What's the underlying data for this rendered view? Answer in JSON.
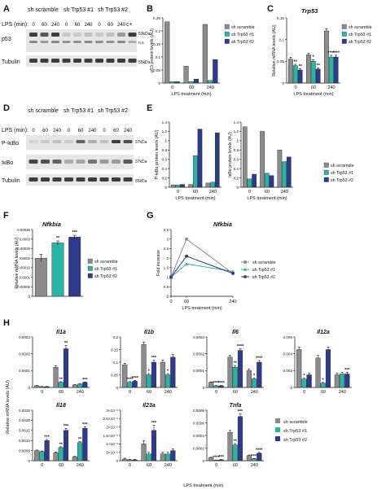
{
  "colors": {
    "scramble": "#8c8c8c",
    "trp1": "#2bb3a3",
    "trp2": "#2e3a8c",
    "blot_bg": "#e8e8e8",
    "band": "#2a2a2a"
  },
  "panels": {
    "A": {
      "letter": "A",
      "lps_label": "LPS (min):",
      "groups": [
        "sh scramble",
        "sh Trp53 #1",
        "sh Trp53 #2"
      ],
      "times": [
        "0",
        "60",
        "240",
        "0",
        "60",
        "240",
        "0",
        "60",
        "240"
      ],
      "extra_lane": "c+",
      "rows": [
        "p53",
        "Tubulin"
      ],
      "markers": [
        "53kDa",
        "n.s",
        "55kDa"
      ]
    },
    "B": {
      "letter": "B"
    },
    "C": {
      "letter": "C",
      "title": "Trp53"
    },
    "D": {
      "letter": "D",
      "lps_label": "LPS (min):",
      "groups": [
        "sh scramble",
        "sh Trp53 #1",
        "sh Trp53 #2"
      ],
      "times": [
        "0",
        "60",
        "240",
        "0",
        "60",
        "240",
        "0",
        "60",
        "240"
      ],
      "rows": [
        "P-IκBα",
        "IκBα",
        "Tubulin"
      ],
      "markers": [
        "37kDa",
        "37kDa",
        "55kDa"
      ]
    },
    "E": {
      "letter": "E"
    },
    "F": {
      "letter": "F",
      "title": "Nfkbia"
    },
    "G": {
      "letter": "G",
      "title": "Nfkbia"
    },
    "H": {
      "letter": "H",
      "ylabel": "Relative mRNA levels (AU)",
      "xlabel": "LPS treatment (min)"
    }
  },
  "legend": {
    "items": [
      "sh scramble",
      "sh Trp53 #1",
      "sh Trp53 #2"
    ]
  },
  "chart_data": [
    {
      "id": "B",
      "type": "bar",
      "categories": [
        "0",
        "60",
        "240"
      ],
      "series": [
        {
          "name": "sh scramble",
          "values": [
            0.235,
            0.065,
            0.225
          ]
        },
        {
          "name": "sh Trp53 #1",
          "values": [
            0.005,
            0.005,
            0.01
          ]
        },
        {
          "name": "sh Trp53 #2",
          "values": [
            0.005,
            0.015,
            0.09
          ]
        }
      ],
      "ylabel": "p53 protein levels (AU)",
      "xlabel": "LPS treatment (min)",
      "ylim": [
        0,
        0.25
      ],
      "yticks": [
        "0",
        "0.05",
        "0.1",
        "0.15",
        "0.2",
        "0.25"
      ],
      "legend": "top-right"
    },
    {
      "id": "C",
      "type": "bar",
      "categories": [
        "0",
        "60",
        "240"
      ],
      "series": [
        {
          "name": "sh scramble",
          "values": [
            0.055,
            0.065,
            0.12
          ]
        },
        {
          "name": "sh Trp53 #1",
          "values": [
            0.04,
            0.05,
            0.06
          ]
        },
        {
          "name": "sh Trp53 #2",
          "values": [
            0.03,
            0.032,
            0.06
          ]
        }
      ],
      "errors": [
        [
          0.004,
          0.004,
          0.005
        ],
        [
          0.003,
          0.004,
          0.004
        ],
        [
          0.003,
          0.003,
          0.004
        ]
      ],
      "signif": [
        [
          "",
          "",
          ""
        ],
        [
          "**",
          "*",
          "****"
        ],
        [
          "**",
          "**",
          "****"
        ]
      ],
      "title": "Trp53",
      "ylabel": "Relative mRNA levels (AU)",
      "xlabel": "LPS treatment (min)",
      "ylim": [
        0,
        0.15
      ],
      "yticks": [
        "0",
        "0.05",
        "0.1",
        "0.15"
      ],
      "legend": "top-right"
    },
    {
      "id": "E1",
      "type": "bar",
      "categories": [
        "0",
        "60",
        "240"
      ],
      "series": [
        {
          "name": "sh scramble",
          "values": [
            0.05,
            0.06,
            0.09
          ]
        },
        {
          "name": "sh Trp53 #1",
          "values": [
            0.05,
            0.68,
            0.11
          ]
        },
        {
          "name": "sh Trp53 #2",
          "values": [
            0.06,
            1.25,
            1.17
          ]
        }
      ],
      "ylabel": "P-IκBα protein levels (AU)",
      "xlabel": "LPS treatment (min)",
      "ylim": [
        0,
        1.4
      ],
      "yticks": [
        "0",
        "0.2",
        "0.4",
        "0.6",
        "0.8",
        "1",
        "1.2",
        "1.4"
      ]
    },
    {
      "id": "E2",
      "type": "bar",
      "categories": [
        "0",
        "60",
        "240"
      ],
      "series": [
        {
          "name": "sh scramble",
          "values": [
            1.3,
            1.2,
            0.8
          ]
        },
        {
          "name": "sh Trp53 #1",
          "values": [
            0.18,
            0.3,
            0.55
          ]
        },
        {
          "name": "sh Trp53 #2",
          "values": [
            0.28,
            0.25,
            0.65
          ]
        }
      ],
      "ylabel": "IκBα protein levels (AU)",
      "xlabel": "LPS treatment (min)",
      "ylim": [
        0,
        1.4
      ],
      "yticks": [
        "0",
        "0.2",
        "0.4",
        "0.6",
        "0.8",
        "1",
        "1.2",
        "1.4"
      ],
      "legend": "right"
    },
    {
      "id": "F",
      "type": "bar",
      "categories": [
        "sh scramble",
        "sh Trp53 #1",
        "sh Trp53 #2"
      ],
      "values": [
        0.0002,
        0.00028,
        0.00031
      ],
      "errors": [
        2e-05,
        1e-05,
        1e-05
      ],
      "signif": [
        "",
        "**",
        "***"
      ],
      "title": "Nfkbia",
      "ylabel": "Relative mRNA levels (AU)",
      "ylim": [
        0,
        0.00035
      ],
      "yticks": [
        "0",
        "0.00005",
        "0.0001",
        "0.00015",
        "0.0002",
        "0.00025",
        "0.0003",
        "0.00035"
      ],
      "legend": "right"
    },
    {
      "id": "G",
      "type": "line",
      "x": [
        0,
        60,
        240
      ],
      "series": [
        {
          "name": "sh scramble",
          "values": [
            1,
            3,
            1.2
          ]
        },
        {
          "name": "sh Trp53 #1",
          "values": [
            1,
            1.7,
            1.3
          ]
        },
        {
          "name": "sh Trp53 #2",
          "values": [
            1,
            2.1,
            1.2
          ]
        }
      ],
      "title": "Nfkbia",
      "ylabel": "Fold increase",
      "xlabel": "LPS treatment (min)",
      "ylim": [
        0,
        3.5
      ],
      "yticks": [
        "0",
        "0.5",
        "1",
        "1.5",
        "2",
        "2.5",
        "3",
        "3.5"
      ],
      "xticks": [
        "0",
        "60",
        "240"
      ],
      "legend": "right"
    },
    {
      "id": "H1",
      "type": "bar",
      "title": "Il1a",
      "categories": [
        "0",
        "60",
        "240"
      ],
      "series": [
        {
          "name": "sh scramble",
          "values": [
            1e-05,
            0.00012,
            1.5e-05
          ]
        },
        {
          "name": "sh Trp53 #1",
          "values": [
            5e-06,
            3e-05,
            2e-05
          ]
        },
        {
          "name": "sh Trp53 #2",
          "values": [
            5e-06,
            0.00023,
            3e-05
          ]
        }
      ],
      "errors": [
        [
          2e-06,
          1e-05,
          2e-06
        ],
        [
          1e-06,
          4e-06,
          2e-06
        ],
        [
          1e-06,
          2e-05,
          2e-06
        ]
      ],
      "signif": [
        [
          "",
          "",
          ""
        ],
        [
          "",
          "**",
          ""
        ],
        [
          "",
          "**",
          "***"
        ]
      ],
      "ylim": [
        0,
        0.0003
      ],
      "yticks": [
        "0",
        "0.0001",
        "0.0002",
        "0.0003"
      ]
    },
    {
      "id": "H2",
      "type": "bar",
      "title": "Il1b",
      "categories": [
        "0",
        "60",
        "240"
      ],
      "series": [
        {
          "name": "sh scramble",
          "values": [
            0.09,
            0.17,
            0.1
          ]
        },
        {
          "name": "sh Trp53 #1",
          "values": [
            0.02,
            0.05,
            0.05
          ]
        },
        {
          "name": "sh Trp53 #2",
          "values": [
            0.025,
            0.1,
            0.12
          ]
        }
      ],
      "errors": [
        [
          0.005,
          0.01,
          0.008
        ],
        [
          0.003,
          0.005,
          0.005
        ],
        [
          0.003,
          0.008,
          0.01
        ]
      ],
      "signif": [
        [
          "",
          "",
          ""
        ],
        [
          "****",
          "*",
          "*"
        ],
        [
          "****",
          "***",
          ""
        ]
      ],
      "ylim": [
        0,
        0.2
      ],
      "yticks": [
        "0",
        "0.05",
        "0.1",
        "0.15",
        "0.2"
      ]
    },
    {
      "id": "H3",
      "type": "bar",
      "title": "Il6",
      "categories": [
        "0",
        "60",
        "240"
      ],
      "series": [
        {
          "name": "sh scramble",
          "values": [
            3e-05,
            0.00018,
            0.0001
          ]
        },
        {
          "name": "sh Trp53 #1",
          "values": [
            1e-05,
            0.00012,
            5e-05
          ]
        },
        {
          "name": "sh Trp53 #2",
          "values": [
            1e-05,
            0.00022,
            0.00015
          ]
        }
      ],
      "errors": [
        [
          3e-06,
          1e-05,
          1e-05
        ],
        [
          2e-06,
          1e-05,
          5e-06
        ],
        [
          2e-06,
          1e-05,
          1e-05
        ]
      ],
      "signif": [
        [
          "",
          "",
          ""
        ],
        [
          "****",
          "**",
          "*"
        ],
        [
          "****",
          "****",
          "****"
        ]
      ],
      "ylim": [
        0,
        0.0003
      ],
      "yticks": [
        "0",
        "0.0001",
        "0.0002",
        "0.0003"
      ]
    },
    {
      "id": "H4",
      "type": "bar",
      "title": "Il12a",
      "categories": [
        "0",
        "60",
        "240"
      ],
      "series": [
        {
          "name": "sh scramble",
          "values": [
            0.0045,
            0.0035,
            0.0015
          ]
        },
        {
          "name": "sh Trp53 #1",
          "values": [
            0.001,
            0.0005,
            0.0016
          ]
        },
        {
          "name": "sh Trp53 #2",
          "values": [
            0.0015,
            0.0045,
            0.0016
          ]
        }
      ],
      "errors": [
        [
          0.0003,
          0.0003,
          0.0002
        ],
        [
          0.0001,
          0.0001,
          0.0002
        ],
        [
          0.0002,
          0.0003,
          0.0002
        ]
      ],
      "signif": [
        [
          "",
          "",
          ""
        ],
        [
          "*",
          "*",
          ""
        ],
        [
          "",
          "",
          "***"
        ]
      ],
      "ylim": [
        0,
        0.006
      ],
      "yticks": [
        "0",
        "0.002",
        "0.004",
        "0.006"
      ]
    },
    {
      "id": "H5",
      "type": "bar",
      "title": "Il18",
      "categories": [
        "0",
        "60",
        "240"
      ],
      "series": [
        {
          "name": "sh scramble",
          "values": [
            0.0005,
            0.0004,
            0.0002
          ]
        },
        {
          "name": "sh Trp53 #1",
          "values": [
            0.00045,
            0.00065,
            0.0009
          ]
        },
        {
          "name": "sh Trp53 #2",
          "values": [
            0.001,
            0.0015,
            0.0016
          ]
        }
      ],
      "errors": [
        [
          3e-05,
          3e-05,
          2e-05
        ],
        [
          3e-05,
          4e-05,
          5e-05
        ],
        [
          5e-05,
          0.0001,
          8e-05
        ]
      ],
      "signif": [
        [
          "",
          "",
          ""
        ],
        [
          "",
          "**",
          "**"
        ],
        [
          "***",
          "***",
          "***"
        ]
      ],
      "ylim": [
        0,
        0.0025
      ],
      "yticks": [
        "0",
        "0.0005",
        "0.0010",
        "0.0015",
        "0.0020",
        "0.0025"
      ]
    },
    {
      "id": "H6",
      "type": "bar",
      "title": "Il23a",
      "categories": [
        "0",
        "60",
        "240"
      ],
      "series": [
        {
          "name": "sh scramble",
          "values": [
            1e-06,
            1e-05,
            4e-06
          ]
        },
        {
          "name": "sh Trp53 #1",
          "values": [
            5e-07,
            4e-06,
            4e-06
          ]
        },
        {
          "name": "sh Trp53 #2",
          "values": [
            5e-07,
            1.8e-05,
            6e-06
          ]
        }
      ],
      "errors": [
        [
          5e-07,
          2e-06,
          1e-06
        ],
        [
          3e-07,
          1e-06,
          1e-06
        ],
        [
          3e-07,
          3e-06,
          1e-06
        ]
      ],
      "signif": [
        [
          "",
          "",
          ""
        ],
        [
          "",
          "",
          ""
        ],
        [
          "",
          "***",
          ""
        ]
      ],
      "ylim": [
        0,
        3e-05
      ],
      "yticks": [
        "0",
        "5×10⁻⁶",
        "1×10⁻⁵",
        "1.5×10⁻⁵",
        "2×10⁻⁵",
        "2.5×10⁻⁵",
        "3×10⁻⁵"
      ]
    },
    {
      "id": "H7",
      "type": "bar",
      "title": "Tnfa",
      "categories": [
        "0",
        "60",
        "240"
      ],
      "series": [
        {
          "name": "sh scramble",
          "values": [
            5e-05,
            0.00045,
            8e-05
          ]
        },
        {
          "name": "sh Trp53 #1",
          "values": [
            1e-05,
            0.00025,
            3e-05
          ]
        },
        {
          "name": "sh Trp53 #2",
          "values": [
            1.5e-05,
            0.0007,
            0.00012
          ]
        }
      ],
      "errors": [
        [
          5e-06,
          3e-05,
          1e-05
        ],
        [
          2e-06,
          2e-05,
          5e-06
        ],
        [
          3e-06,
          4e-05,
          1e-05
        ]
      ],
      "signif": [
        [
          "",
          "",
          ""
        ],
        [
          "****",
          "**",
          "****"
        ],
        [
          "***",
          "***",
          "****"
        ]
      ],
      "ylim": [
        0,
        0.0008
      ],
      "yticks": [
        "0",
        "0.0002",
        "0.0004",
        "0.0006",
        "0.0008"
      ]
    }
  ]
}
